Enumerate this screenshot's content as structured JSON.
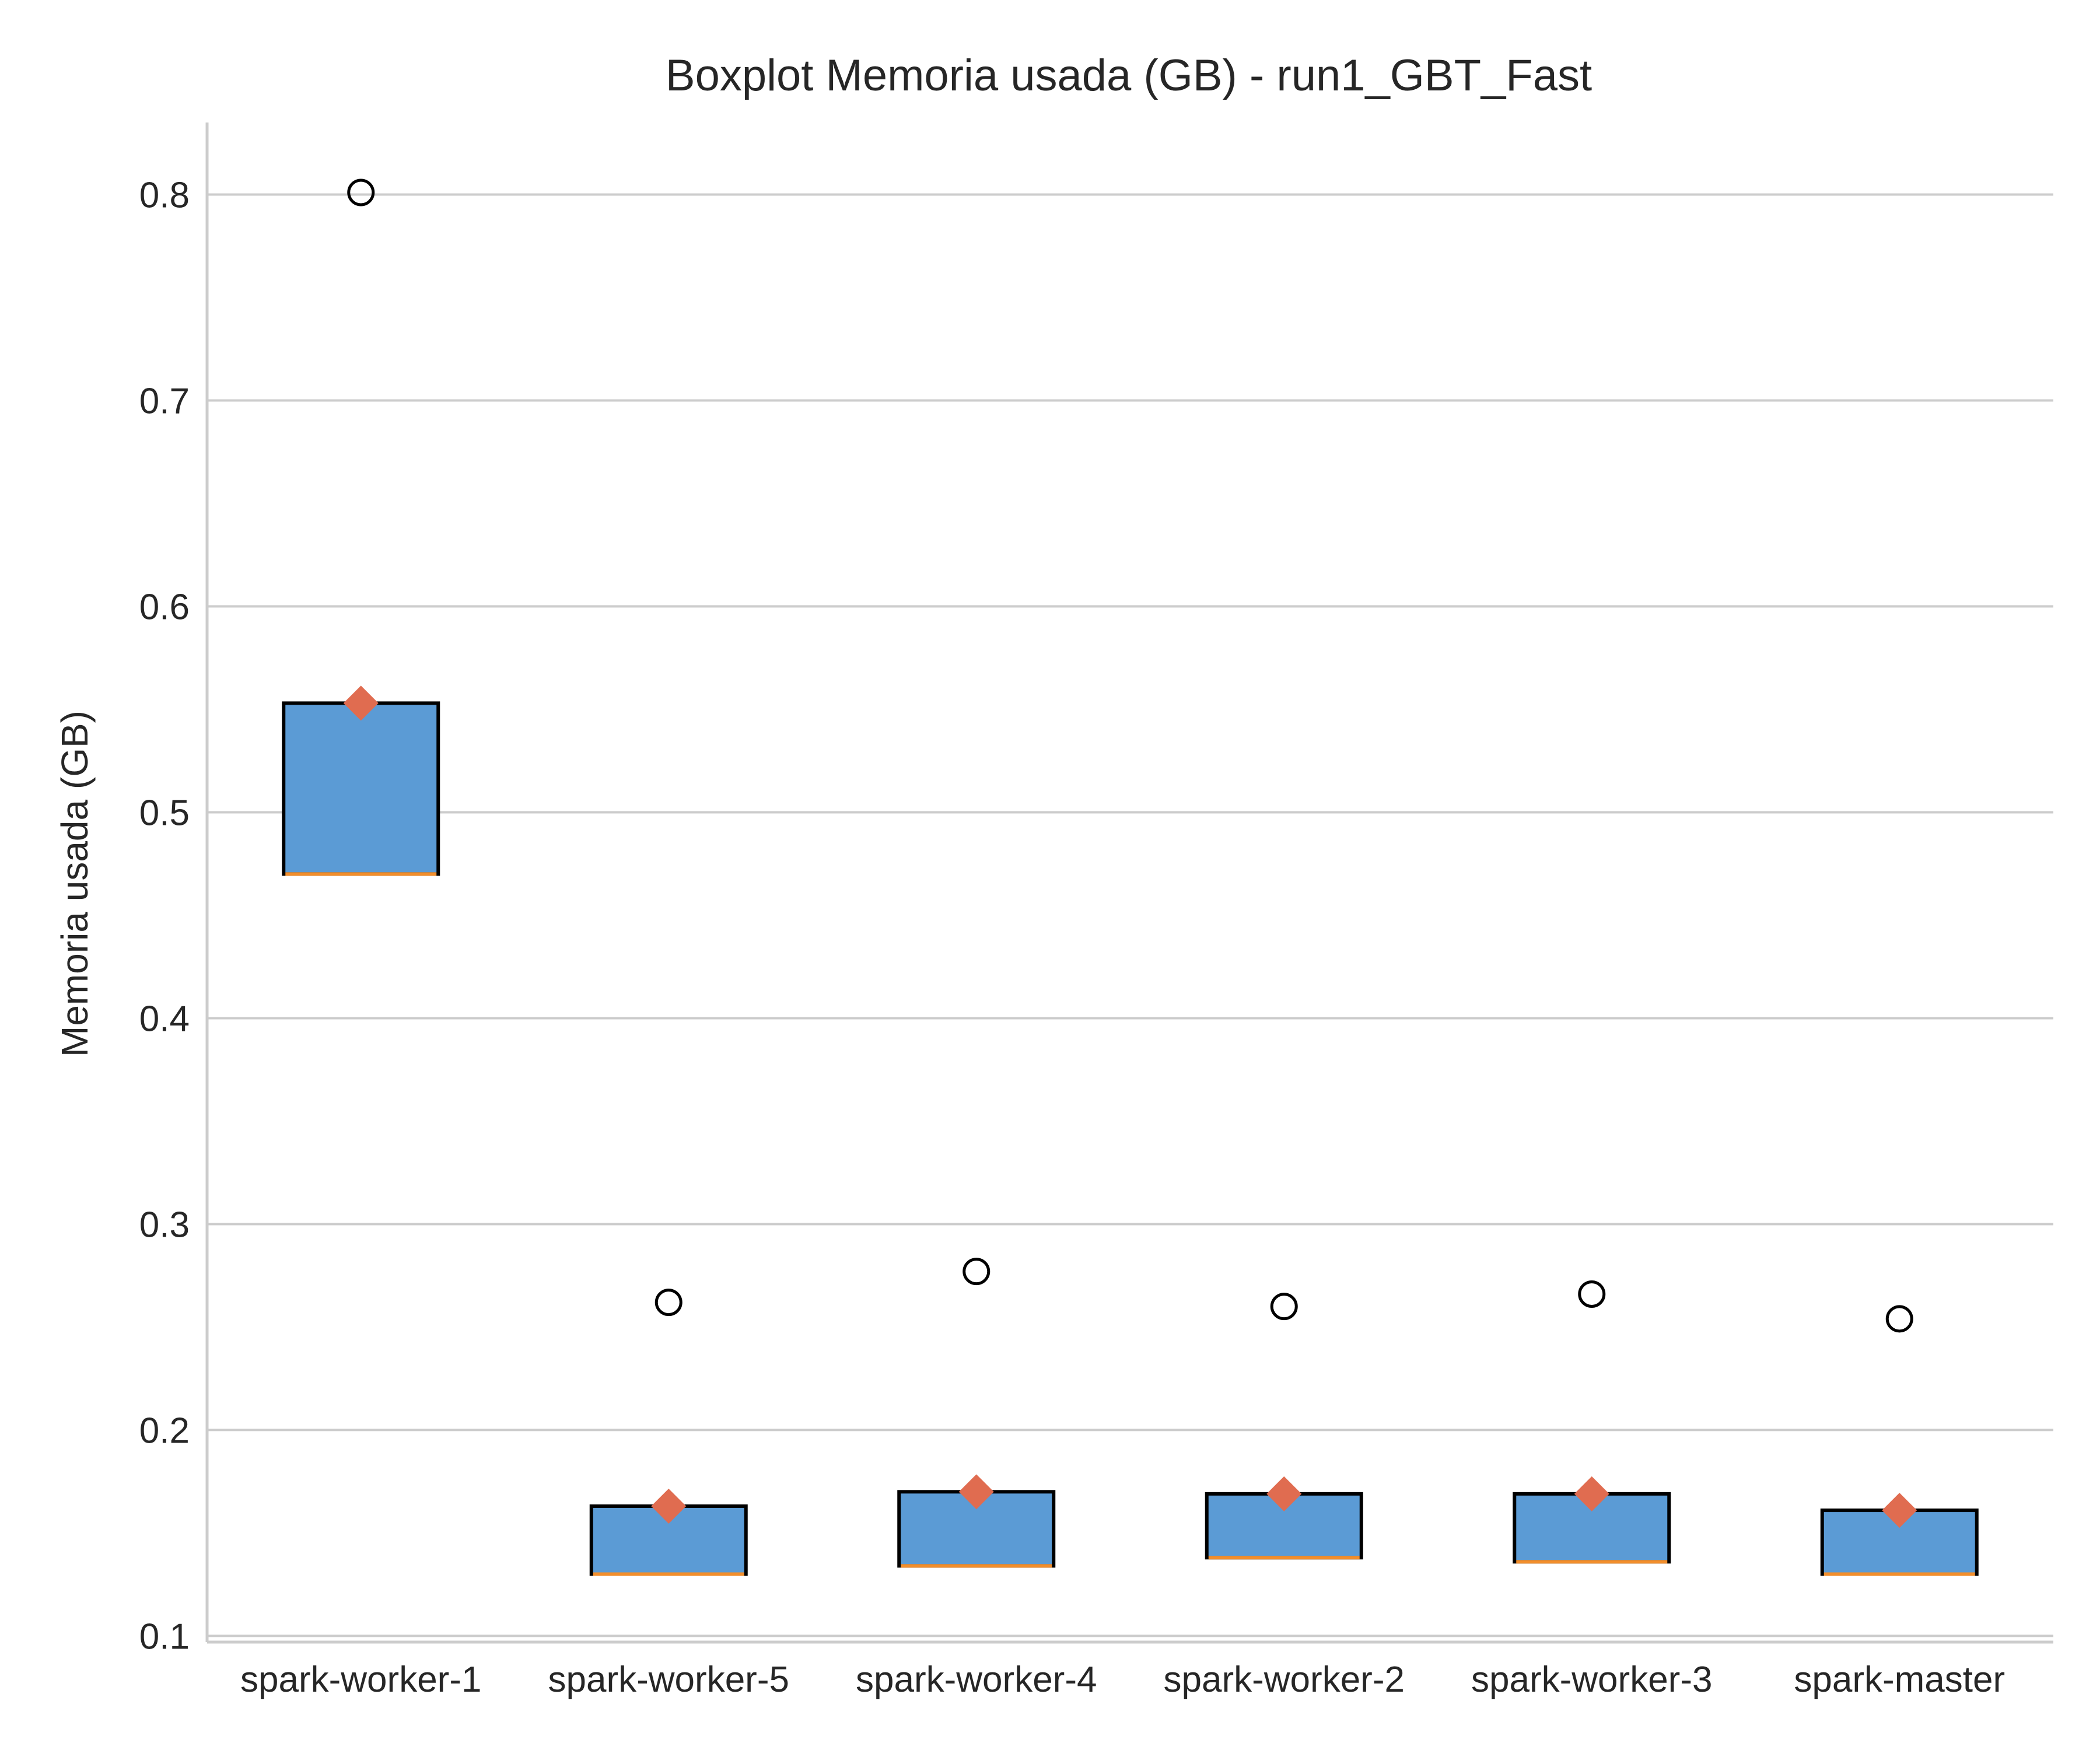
{
  "chart_data": {
    "type": "box",
    "title": "Boxplot Memoria usada (GB) - run1_GBT_Fast",
    "xlabel": "",
    "ylabel": "Memoria usada (GB)",
    "ylim": [
      0.097,
      0.835
    ],
    "yticks": [
      0.1,
      0.2,
      0.3,
      0.4,
      0.5,
      0.6,
      0.7,
      0.8
    ],
    "ytick_labels": [
      "0.1",
      "0.2",
      "0.3",
      "0.4",
      "0.5",
      "0.6",
      "0.7",
      "0.8"
    ],
    "grid": "horizontal",
    "categories": [
      "spark-worker-1",
      "spark-worker-5",
      "spark-worker-4",
      "spark-worker-2",
      "spark-worker-3",
      "spark-master"
    ],
    "boxes": [
      {
        "q1": 0.47,
        "median": 0.47,
        "q3": 0.553,
        "whisker_low": 0.47,
        "whisker_high": 0.553,
        "mean": 0.553,
        "fliers": [
          0.801
        ]
      },
      {
        "q1": 0.13,
        "median": 0.13,
        "q3": 0.163,
        "whisker_low": 0.13,
        "whisker_high": 0.163,
        "mean": 0.163,
        "fliers": [
          0.262
        ]
      },
      {
        "q1": 0.134,
        "median": 0.134,
        "q3": 0.17,
        "whisker_low": 0.134,
        "whisker_high": 0.17,
        "mean": 0.17,
        "fliers": [
          0.277
        ]
      },
      {
        "q1": 0.138,
        "median": 0.138,
        "q3": 0.169,
        "whisker_low": 0.138,
        "whisker_high": 0.169,
        "mean": 0.169,
        "fliers": [
          0.26
        ]
      },
      {
        "q1": 0.136,
        "median": 0.136,
        "q3": 0.169,
        "whisker_low": 0.136,
        "whisker_high": 0.169,
        "mean": 0.169,
        "fliers": [
          0.266
        ]
      },
      {
        "q1": 0.13,
        "median": 0.13,
        "q3": 0.161,
        "whisker_low": 0.13,
        "whisker_high": 0.161,
        "mean": 0.161,
        "fliers": [
          0.254
        ]
      }
    ],
    "colors": {
      "box_fill": "#5b9bd5",
      "box_edge": "#000000",
      "median": "#f28e2b",
      "mean": "#e06c50",
      "flier_edge": "#000000",
      "grid": "#cccccc",
      "text": "#262626"
    }
  }
}
